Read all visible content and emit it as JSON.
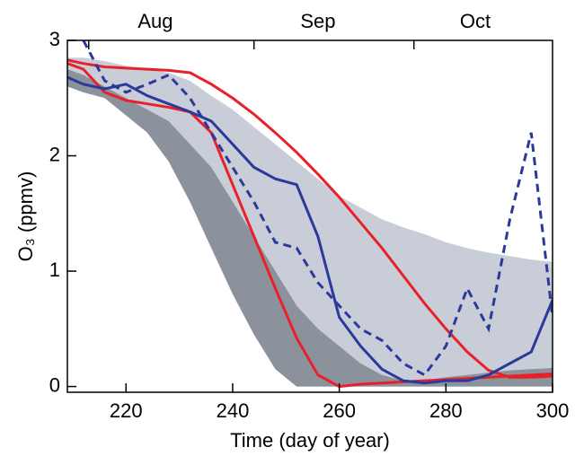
{
  "chart_data": {
    "type": "line",
    "xlabel": "Time (day of year)",
    "ylabel": "O₃ (ppmv)",
    "xlim": [
      209,
      300
    ],
    "ylim": [
      -0.05,
      3
    ],
    "xticks": [
      220,
      240,
      260,
      280,
      300
    ],
    "yticks": [
      0,
      1,
      2,
      3
    ],
    "top_axis": {
      "ticks": [
        213,
        244,
        274
      ],
      "labels": [
        {
          "value": 225.5,
          "label": "Aug"
        },
        {
          "value": 256,
          "label": "Sep"
        },
        {
          "value": 285.5,
          "label": "Oct"
        }
      ]
    },
    "x": [
      209,
      212,
      216,
      220,
      224,
      228,
      232,
      236,
      240,
      244,
      248,
      252,
      256,
      260,
      264,
      268,
      272,
      276,
      280,
      284,
      288,
      292,
      296,
      300
    ],
    "bands": [
      {
        "color": "#c9cdd8",
        "upper": [
          2.85,
          2.85,
          2.82,
          2.78,
          2.75,
          2.72,
          2.65,
          2.52,
          2.4,
          2.25,
          2.1,
          1.95,
          1.8,
          1.65,
          1.55,
          1.45,
          1.38,
          1.32,
          1.25,
          1.2,
          1.16,
          1.13,
          1.1,
          1.08
        ],
        "lower": [
          2.7,
          2.65,
          2.55,
          2.45,
          2.35,
          2.2,
          2.0,
          1.7,
          1.3,
          0.9,
          0.5,
          0.2,
          0.0,
          0,
          0,
          0,
          0,
          0,
          0,
          0,
          0,
          0,
          0,
          0
        ]
      },
      {
        "color": "#8c929b",
        "upper": [
          2.75,
          2.7,
          2.6,
          2.5,
          2.4,
          2.3,
          2.1,
          1.9,
          1.6,
          1.3,
          1.0,
          0.7,
          0.5,
          0.35,
          0.2,
          0.1,
          0.05,
          0.05,
          0.08,
          0.1,
          0.12,
          0.14,
          0.15,
          0.16
        ],
        "lower": [
          2.6,
          2.55,
          2.5,
          2.35,
          2.2,
          1.95,
          1.6,
          1.2,
          0.8,
          0.45,
          0.15,
          0,
          0,
          0,
          0,
          0,
          0,
          0,
          0,
          0,
          0,
          0,
          0,
          0
        ]
      }
    ],
    "series": [
      {
        "color": "#e8202a",
        "dash": false,
        "values": [
          2.83,
          2.8,
          2.77,
          2.76,
          2.75,
          2.74,
          2.72,
          2.62,
          2.5,
          2.36,
          2.2,
          2.03,
          1.84,
          1.64,
          1.42,
          1.2,
          0.96,
          0.72,
          0.5,
          0.3,
          0.14,
          0.08,
          0.08,
          0.09
        ]
      },
      {
        "color": "#e8202a",
        "dash": false,
        "values": [
          2.8,
          2.75,
          2.55,
          2.48,
          2.45,
          2.42,
          2.38,
          2.2,
          1.75,
          1.3,
          0.85,
          0.42,
          0.1,
          0.0,
          0.02,
          0.03,
          0.04,
          0.05,
          0.06,
          0.07,
          0.08,
          0.09,
          0.1,
          0.11
        ]
      },
      {
        "color": "#2b3a9a",
        "dash": false,
        "values": [
          2.68,
          2.62,
          2.58,
          2.62,
          2.52,
          2.45,
          2.38,
          2.3,
          2.1,
          1.9,
          1.8,
          1.75,
          1.3,
          0.6,
          0.35,
          0.15,
          0.05,
          0.03,
          0.05,
          0.05,
          0.1,
          0.2,
          0.3,
          0.75
        ]
      },
      {
        "color": "#2b3a9a",
        "dash": true,
        "values": [
          null,
          3.0,
          2.65,
          2.55,
          2.62,
          2.7,
          2.5,
          2.2,
          1.9,
          1.6,
          1.25,
          1.2,
          0.9,
          0.7,
          0.5,
          0.4,
          0.2,
          0.1,
          0.35,
          0.85,
          0.5,
          1.45,
          2.2,
          0.6
        ]
      }
    ]
  }
}
